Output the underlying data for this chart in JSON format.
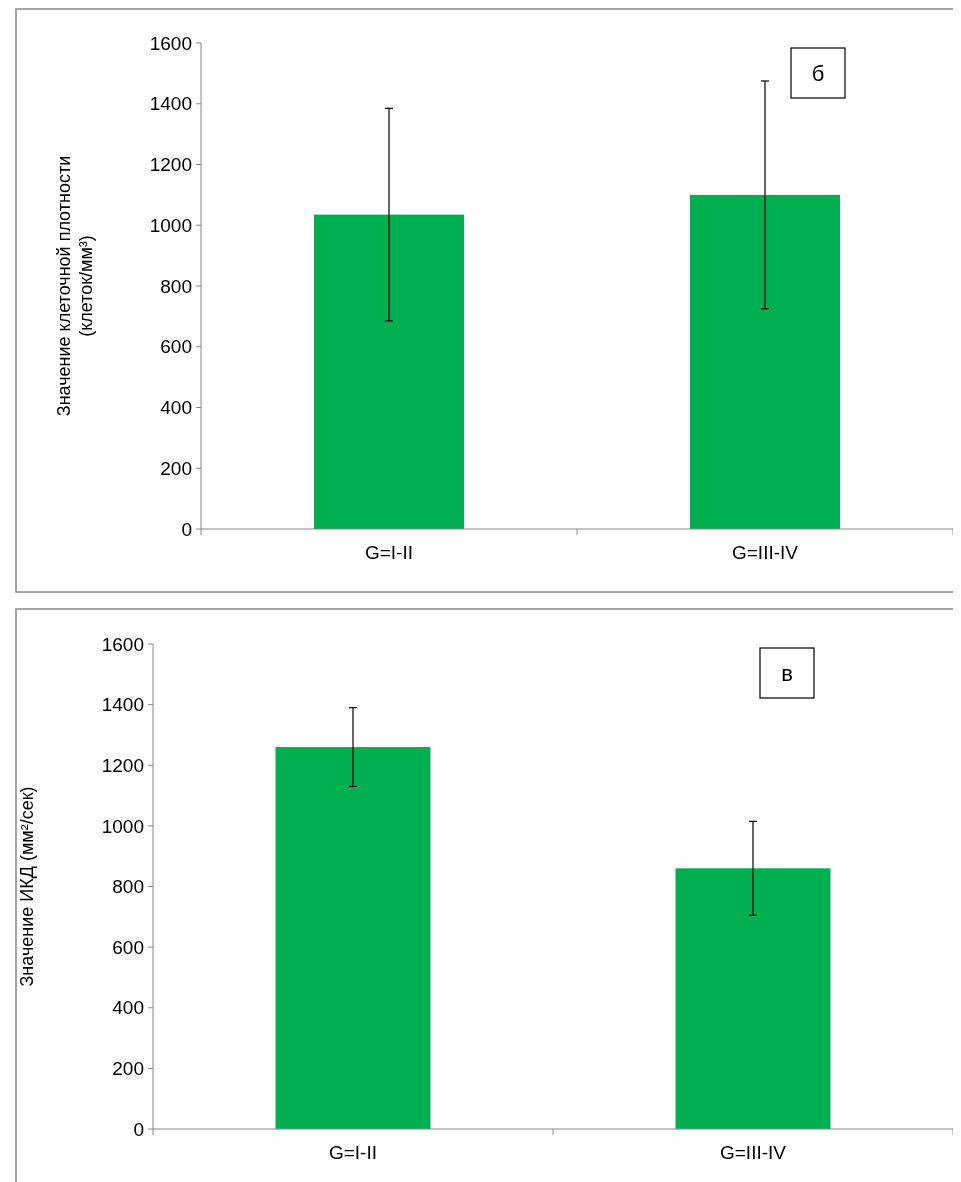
{
  "chart_data": [
    {
      "type": "bar",
      "categories": [
        "G=I-II",
        "G=III-IV"
      ],
      "values": [
        1035,
        1100
      ],
      "errors": [
        350,
        375
      ],
      "color": "#00b050",
      "ylabel": "Значение клеточной плотности\n(клеток/мм³)",
      "ylim": [
        0,
        1600
      ],
      "yticks": [
        0,
        200,
        400,
        600,
        800,
        1000,
        1200,
        1400,
        1600
      ],
      "grid": false,
      "annotations": [
        "б"
      ]
    },
    {
      "type": "bar",
      "categories": [
        "G=I-II",
        "G=III-IV"
      ],
      "values": [
        1260,
        860
      ],
      "errors": [
        130,
        155
      ],
      "color": "#00b050",
      "ylabel": "Значение ИКД (мм²/сек)",
      "ylim": [
        0,
        1600
      ],
      "yticks": [
        0,
        200,
        400,
        600,
        800,
        1000,
        1200,
        1400,
        1600
      ],
      "grid": false,
      "annotations": [
        "в"
      ]
    }
  ]
}
